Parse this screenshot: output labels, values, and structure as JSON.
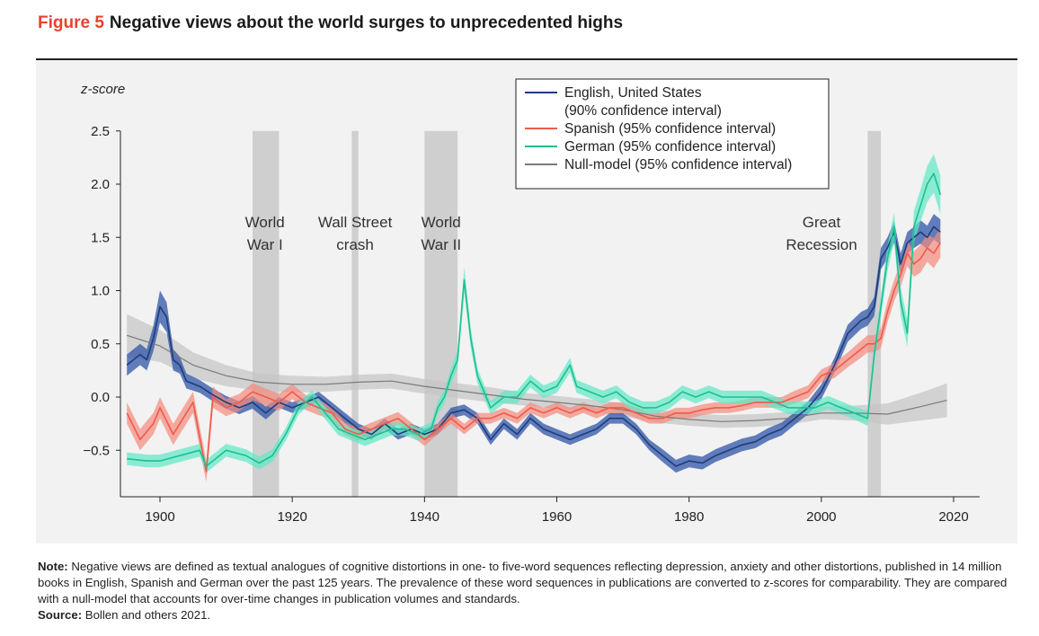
{
  "header": {
    "figure_label": "Figure 5",
    "title": "Negative views about the world surges to unprecedented highs"
  },
  "footer": {
    "note_label": "Note:",
    "note_text": "Negative views are defined as textual analogues of cognitive distortions in one- to five-word sequences reflecting depression, anxiety and other distortions, published in 14 million books in English, Spanish and German over the past 125 years. The prevalence of these word sequences in publications are converted to z-scores for comparability. They are compared with a null-model that accounts for over-time changes in publication volumes and standards.",
    "source_label": "Source:",
    "source_text": "Bollen and others 2021."
  },
  "chart_data": {
    "type": "line",
    "title": "Negative views about the world surges to unprecedented highs",
    "ylabel": "z-score",
    "xlabel": "",
    "xlim": [
      1893,
      2024
    ],
    "ylim": [
      -0.95,
      2.5
    ],
    "x_ticks": [
      1900,
      1920,
      1940,
      1960,
      1980,
      2000,
      2020
    ],
    "y_ticks": [
      -0.5,
      0.0,
      0.5,
      1.0,
      1.5,
      2.0,
      2.5
    ],
    "y_tick_labels": [
      "−0.5",
      "0.0",
      "0.5",
      "1.0",
      "1.5",
      "2.0",
      "2.5"
    ],
    "legend_position": "top-right",
    "events": [
      {
        "label": [
          "World",
          "War I"
        ],
        "start": 1914,
        "end": 1918
      },
      {
        "label": [
          "Wall Street",
          "crash"
        ],
        "start": 1929,
        "end": 1930
      },
      {
        "label": [
          "World",
          "War II"
        ],
        "start": 1940,
        "end": 1945
      },
      {
        "label": [
          "Great",
          "Recession"
        ],
        "start": 2007,
        "end": 2009
      }
    ],
    "series": [
      {
        "name": "Null-model (95% confidence interval)",
        "color": "#7a7a7a",
        "band_color": "#c4c4c4",
        "band_opacity": 0.7,
        "x": [
          1895,
          1900,
          1905,
          1910,
          1915,
          1920,
          1925,
          1930,
          1935,
          1940,
          1945,
          1950,
          1955,
          1960,
          1965,
          1970,
          1975,
          1980,
          1985,
          1990,
          1995,
          2000,
          2005,
          2010,
          2015,
          2019
        ],
        "values": [
          0.58,
          0.48,
          0.3,
          0.2,
          0.14,
          0.12,
          0.12,
          0.14,
          0.15,
          0.1,
          0.06,
          0.02,
          -0.02,
          -0.05,
          -0.08,
          -0.12,
          -0.18,
          -0.21,
          -0.23,
          -0.22,
          -0.2,
          -0.15,
          -0.15,
          -0.16,
          -0.09,
          -0.03
        ],
        "band": [
          0.2,
          0.15,
          0.12,
          0.1,
          0.08,
          0.08,
          0.07,
          0.07,
          0.07,
          0.07,
          0.07,
          0.07,
          0.06,
          0.06,
          0.06,
          0.06,
          0.06,
          0.06,
          0.06,
          0.06,
          0.06,
          0.06,
          0.07,
          0.1,
          0.13,
          0.16
        ]
      },
      {
        "name": "English, United States (90% confidence interval)",
        "color": "#1f3d7a",
        "band_color": "#2f54a8",
        "band_opacity": 0.75,
        "x": [
          1895,
          1897,
          1898,
          1899,
          1900,
          1901,
          1902,
          1903,
          1904,
          1906,
          1908,
          1910,
          1912,
          1914,
          1916,
          1918,
          1920,
          1922,
          1924,
          1926,
          1928,
          1930,
          1932,
          1934,
          1936,
          1938,
          1940,
          1942,
          1944,
          1946,
          1948,
          1950,
          1952,
          1954,
          1956,
          1958,
          1960,
          1962,
          1964,
          1966,
          1968,
          1970,
          1972,
          1974,
          1976,
          1978,
          1980,
          1982,
          1984,
          1986,
          1988,
          1990,
          1992,
          1994,
          1996,
          1998,
          2000,
          2002,
          2004,
          2006,
          2007,
          2008,
          2009,
          2010,
          2011,
          2012,
          2013,
          2014,
          2015,
          2016,
          2017,
          2018
        ],
        "values": [
          0.3,
          0.4,
          0.35,
          0.55,
          0.85,
          0.75,
          0.35,
          0.3,
          0.15,
          0.1,
          0.02,
          -0.05,
          -0.1,
          -0.05,
          -0.15,
          -0.05,
          -0.1,
          -0.05,
          0.0,
          -0.1,
          -0.2,
          -0.3,
          -0.35,
          -0.25,
          -0.35,
          -0.3,
          -0.35,
          -0.3,
          -0.15,
          -0.12,
          -0.2,
          -0.4,
          -0.25,
          -0.35,
          -0.2,
          -0.3,
          -0.35,
          -0.4,
          -0.35,
          -0.3,
          -0.2,
          -0.2,
          -0.3,
          -0.45,
          -0.55,
          -0.65,
          -0.6,
          -0.62,
          -0.55,
          -0.5,
          -0.45,
          -0.42,
          -0.35,
          -0.3,
          -0.2,
          -0.1,
          0.05,
          0.3,
          0.6,
          0.72,
          0.75,
          0.85,
          1.3,
          1.4,
          1.55,
          1.25,
          1.45,
          1.5,
          1.55,
          1.5,
          1.6,
          1.55
        ],
        "band": [
          0.1,
          0.1,
          0.1,
          0.12,
          0.15,
          0.14,
          0.1,
          0.08,
          0.07,
          0.06,
          0.06,
          0.06,
          0.06,
          0.06,
          0.06,
          0.05,
          0.05,
          0.05,
          0.05,
          0.05,
          0.05,
          0.05,
          0.05,
          0.05,
          0.05,
          0.05,
          0.05,
          0.05,
          0.05,
          0.05,
          0.05,
          0.05,
          0.05,
          0.05,
          0.05,
          0.05,
          0.05,
          0.05,
          0.05,
          0.05,
          0.05,
          0.05,
          0.05,
          0.05,
          0.06,
          0.06,
          0.06,
          0.06,
          0.06,
          0.06,
          0.06,
          0.06,
          0.06,
          0.06,
          0.06,
          0.06,
          0.07,
          0.07,
          0.08,
          0.08,
          0.08,
          0.09,
          0.1,
          0.1,
          0.1,
          0.1,
          0.1,
          0.1,
          0.11,
          0.11,
          0.12,
          0.12
        ]
      },
      {
        "name": "Spanish (95% confidence interval)",
        "color": "#f05a4a",
        "band_color": "#f48a7c",
        "band_opacity": 0.7,
        "x": [
          1895,
          1897,
          1899,
          1900,
          1902,
          1904,
          1905,
          1907,
          1908,
          1910,
          1912,
          1914,
          1916,
          1918,
          1920,
          1922,
          1924,
          1926,
          1928,
          1930,
          1932,
          1934,
          1936,
          1938,
          1940,
          1942,
          1944,
          1946,
          1948,
          1950,
          1952,
          1954,
          1956,
          1958,
          1960,
          1962,
          1964,
          1966,
          1968,
          1970,
          1972,
          1974,
          1976,
          1978,
          1980,
          1982,
          1984,
          1986,
          1988,
          1990,
          1992,
          1994,
          1996,
          1998,
          2000,
          2002,
          2004,
          2006,
          2007,
          2008,
          2009,
          2010,
          2011,
          2012,
          2013,
          2014,
          2015,
          2016,
          2017,
          2018
        ],
        "values": [
          -0.15,
          -0.4,
          -0.25,
          -0.1,
          -0.35,
          -0.15,
          -0.05,
          -0.7,
          0.0,
          -0.1,
          -0.05,
          0.05,
          0.0,
          -0.05,
          0.05,
          -0.05,
          -0.1,
          -0.15,
          -0.3,
          -0.35,
          -0.3,
          -0.25,
          -0.2,
          -0.3,
          -0.4,
          -0.3,
          -0.2,
          -0.3,
          -0.2,
          -0.2,
          -0.15,
          -0.2,
          -0.1,
          -0.15,
          -0.1,
          -0.15,
          -0.1,
          -0.15,
          -0.1,
          -0.1,
          -0.15,
          -0.2,
          -0.2,
          -0.15,
          -0.15,
          -0.12,
          -0.1,
          -0.1,
          -0.08,
          -0.05,
          -0.05,
          -0.05,
          0.0,
          0.05,
          0.2,
          0.25,
          0.35,
          0.45,
          0.5,
          0.5,
          0.55,
          0.8,
          1.0,
          1.15,
          1.35,
          1.25,
          1.3,
          1.4,
          1.35,
          1.45
        ],
        "band": [
          0.1,
          0.1,
          0.1,
          0.1,
          0.1,
          0.1,
          0.1,
          0.1,
          0.1,
          0.08,
          0.08,
          0.08,
          0.08,
          0.08,
          0.07,
          0.07,
          0.07,
          0.06,
          0.06,
          0.06,
          0.06,
          0.06,
          0.06,
          0.06,
          0.06,
          0.05,
          0.05,
          0.05,
          0.05,
          0.05,
          0.05,
          0.05,
          0.05,
          0.05,
          0.05,
          0.05,
          0.05,
          0.05,
          0.05,
          0.05,
          0.05,
          0.05,
          0.05,
          0.05,
          0.05,
          0.05,
          0.05,
          0.05,
          0.05,
          0.05,
          0.05,
          0.05,
          0.06,
          0.06,
          0.06,
          0.07,
          0.07,
          0.08,
          0.08,
          0.08,
          0.09,
          0.1,
          0.1,
          0.11,
          0.12,
          0.12,
          0.13,
          0.13,
          0.14,
          0.14
        ]
      },
      {
        "name": "German (95% confidence interval)",
        "color": "#1fbf8f",
        "band_color": "#5ee8c6",
        "band_opacity": 0.7,
        "x": [
          1895,
          1898,
          1900,
          1903,
          1906,
          1907,
          1910,
          1913,
          1915,
          1917,
          1919,
          1921,
          1923,
          1925,
          1927,
          1929,
          1931,
          1933,
          1935,
          1937,
          1939,
          1941,
          1942,
          1943,
          1944,
          1945,
          1946,
          1947,
          1948,
          1950,
          1952,
          1954,
          1956,
          1958,
          1960,
          1962,
          1963,
          1965,
          1967,
          1969,
          1971,
          1973,
          1975,
          1977,
          1979,
          1981,
          1983,
          1985,
          1987,
          1989,
          1991,
          1993,
          1995,
          1997,
          1999,
          2001,
          2003,
          2005,
          2007,
          2008,
          2009,
          2010,
          2011,
          2012,
          2013,
          2014,
          2015,
          2016,
          2017,
          2018
        ],
        "values": [
          -0.58,
          -0.6,
          -0.6,
          -0.55,
          -0.5,
          -0.65,
          -0.5,
          -0.55,
          -0.62,
          -0.55,
          -0.35,
          -0.1,
          0.0,
          -0.15,
          -0.3,
          -0.35,
          -0.4,
          -0.35,
          -0.3,
          -0.3,
          -0.35,
          -0.3,
          -0.1,
          0.0,
          0.2,
          0.35,
          1.1,
          0.55,
          0.2,
          -0.1,
          0.0,
          0.0,
          0.15,
          0.05,
          0.1,
          0.3,
          0.1,
          0.05,
          0.0,
          0.05,
          -0.05,
          -0.1,
          -0.1,
          -0.05,
          0.05,
          0.0,
          0.05,
          0.0,
          0.0,
          0.0,
          0.0,
          -0.05,
          -0.1,
          -0.1,
          -0.1,
          -0.05,
          -0.1,
          -0.15,
          -0.2,
          0.4,
          0.85,
          1.3,
          1.6,
          0.9,
          0.6,
          1.6,
          1.8,
          2.0,
          2.1,
          1.9
        ],
        "band": [
          0.06,
          0.06,
          0.06,
          0.06,
          0.06,
          0.06,
          0.06,
          0.06,
          0.06,
          0.06,
          0.06,
          0.06,
          0.06,
          0.06,
          0.06,
          0.06,
          0.06,
          0.06,
          0.06,
          0.06,
          0.06,
          0.06,
          0.06,
          0.06,
          0.07,
          0.08,
          0.12,
          0.09,
          0.07,
          0.06,
          0.06,
          0.06,
          0.06,
          0.06,
          0.06,
          0.07,
          0.06,
          0.06,
          0.06,
          0.06,
          0.06,
          0.06,
          0.06,
          0.06,
          0.06,
          0.06,
          0.06,
          0.06,
          0.06,
          0.06,
          0.06,
          0.06,
          0.06,
          0.06,
          0.06,
          0.06,
          0.06,
          0.06,
          0.07,
          0.08,
          0.1,
          0.12,
          0.13,
          0.13,
          0.13,
          0.15,
          0.15,
          0.17,
          0.18,
          0.18
        ]
      }
    ],
    "legend": [
      {
        "text": [
          "English, United States",
          "(90% confidence interval)"
        ],
        "color": "#1f3d7a"
      },
      {
        "text": [
          "Spanish (95% confidence interval)"
        ],
        "color": "#f05a4a"
      },
      {
        "text": [
          "German (95% confidence interval)"
        ],
        "color": "#1fbf8f"
      },
      {
        "text": [
          "Null-model (95% confidence interval)"
        ],
        "color": "#7a7a7a"
      }
    ]
  }
}
